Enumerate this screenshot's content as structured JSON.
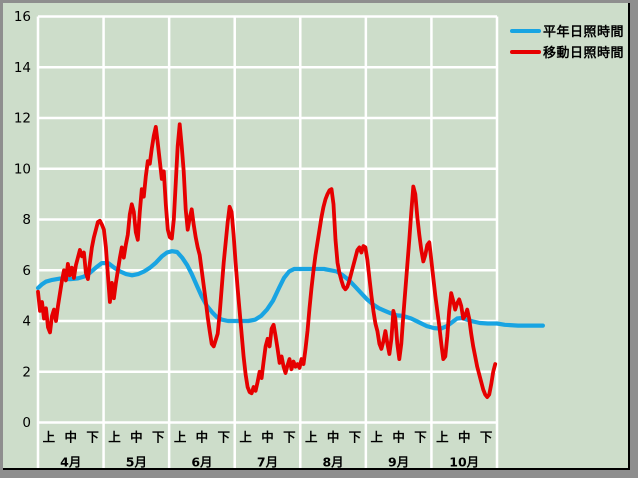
{
  "legend": {
    "items": [
      {
        "label": "平年日照時間",
        "color": "#18a4e2"
      },
      {
        "label": "移動日照時間",
        "color": "#e60000"
      }
    ]
  },
  "colors": {
    "plot_background": "#cdddca",
    "gridline": "#ffffff",
    "text": "#000000",
    "frame_gray": "#8e8e8e",
    "frame_black": "#000000",
    "frame_white": "#ffffff"
  },
  "chart_data": {
    "type": "line",
    "title": "",
    "xlabel": "",
    "ylabel": "",
    "grid": true,
    "legend_position": "top-right",
    "y_axis": {
      "min": 0,
      "max": 16,
      "tick_interval": 2,
      "tick_labels": [
        "0",
        "2",
        "4",
        "6",
        "8",
        "10",
        "12",
        "14",
        "16"
      ]
    },
    "x_axis": {
      "months": [
        "4月",
        "5月",
        "6月",
        "7月",
        "8月",
        "9月",
        "10月"
      ],
      "jun_labels": [
        "上",
        "中",
        "下"
      ],
      "note": "u = fraction of the April-October axis span; each month split into 上/中/下 ten-day periods"
    },
    "series": [
      {
        "name": "平年日照時間",
        "color": "#18a4e2",
        "points_uv": [
          [
            0.0,
            5.3
          ],
          [
            0.009,
            5.45
          ],
          [
            0.017,
            5.55
          ],
          [
            0.031,
            5.62
          ],
          [
            0.048,
            5.67
          ],
          [
            0.07,
            5.65
          ],
          [
            0.087,
            5.68
          ],
          [
            0.1,
            5.75
          ],
          [
            0.113,
            5.9
          ],
          [
            0.126,
            6.1
          ],
          [
            0.139,
            6.28
          ],
          [
            0.153,
            6.28
          ],
          [
            0.166,
            6.1
          ],
          [
            0.179,
            5.95
          ],
          [
            0.192,
            5.85
          ],
          [
            0.205,
            5.8
          ],
          [
            0.218,
            5.85
          ],
          [
            0.231,
            5.95
          ],
          [
            0.244,
            6.1
          ],
          [
            0.257,
            6.3
          ],
          [
            0.27,
            6.55
          ],
          [
            0.281,
            6.7
          ],
          [
            0.292,
            6.75
          ],
          [
            0.303,
            6.72
          ],
          [
            0.314,
            6.5
          ],
          [
            0.325,
            6.2
          ],
          [
            0.335,
            5.85
          ],
          [
            0.346,
            5.4
          ],
          [
            0.357,
            4.95
          ],
          [
            0.368,
            4.6
          ],
          [
            0.379,
            4.35
          ],
          [
            0.39,
            4.15
          ],
          [
            0.401,
            4.05
          ],
          [
            0.414,
            4.0
          ],
          [
            0.436,
            4.0
          ],
          [
            0.458,
            4.0
          ],
          [
            0.473,
            4.05
          ],
          [
            0.486,
            4.2
          ],
          [
            0.499,
            4.45
          ],
          [
            0.512,
            4.8
          ],
          [
            0.525,
            5.3
          ],
          [
            0.536,
            5.7
          ],
          [
            0.547,
            5.95
          ],
          [
            0.558,
            6.05
          ],
          [
            0.58,
            6.05
          ],
          [
            0.601,
            6.05
          ],
          [
            0.623,
            6.05
          ],
          [
            0.638,
            6.0
          ],
          [
            0.651,
            5.95
          ],
          [
            0.664,
            5.8
          ],
          [
            0.678,
            5.6
          ],
          [
            0.691,
            5.35
          ],
          [
            0.704,
            5.1
          ],
          [
            0.717,
            4.85
          ],
          [
            0.73,
            4.65
          ],
          [
            0.743,
            4.5
          ],
          [
            0.756,
            4.4
          ],
          [
            0.769,
            4.3
          ],
          [
            0.782,
            4.22
          ],
          [
            0.795,
            4.2
          ],
          [
            0.813,
            4.1
          ],
          [
            0.83,
            3.95
          ],
          [
            0.847,
            3.8
          ],
          [
            0.863,
            3.72
          ],
          [
            0.878,
            3.7
          ],
          [
            0.891,
            3.8
          ],
          [
            0.902,
            3.95
          ],
          [
            0.913,
            4.1
          ],
          [
            0.924,
            4.12
          ],
          [
            0.935,
            4.05
          ],
          [
            0.948,
            3.98
          ],
          [
            0.963,
            3.92
          ],
          [
            0.98,
            3.9
          ],
          [
            1.0,
            3.9
          ],
          [
            1.017,
            3.85
          ],
          [
            1.046,
            3.82
          ],
          [
            1.076,
            3.82
          ],
          [
            1.1,
            3.82
          ]
        ]
      },
      {
        "name": "移動日照時間",
        "color": "#e60000",
        "u_start": 0.0,
        "u_end": 0.996,
        "values": [
          5.15,
          4.4,
          4.75,
          4.1,
          4.5,
          3.75,
          3.55,
          4.2,
          4.45,
          4.0,
          4.6,
          5.1,
          5.6,
          6.0,
          5.6,
          6.25,
          5.8,
          6.1,
          5.7,
          6.2,
          6.5,
          6.8,
          6.55,
          6.7,
          5.9,
          5.65,
          6.3,
          6.9,
          7.3,
          7.6,
          7.9,
          7.95,
          7.8,
          7.6,
          6.9,
          5.8,
          4.75,
          5.5,
          4.9,
          5.5,
          6.0,
          6.5,
          6.9,
          6.5,
          7.0,
          7.4,
          8.2,
          8.6,
          8.3,
          7.5,
          7.2,
          8.3,
          9.2,
          8.9,
          9.7,
          10.3,
          10.2,
          10.8,
          11.3,
          11.65,
          11.0,
          10.3,
          9.6,
          9.9,
          8.6,
          7.6,
          7.3,
          7.25,
          8.0,
          9.4,
          10.9,
          11.75,
          10.9,
          9.9,
          8.4,
          7.6,
          8.05,
          8.4,
          7.8,
          7.3,
          6.9,
          6.6,
          6.0,
          5.4,
          4.8,
          4.15,
          3.6,
          3.1,
          3.0,
          3.25,
          3.5,
          4.3,
          5.3,
          6.3,
          7.1,
          7.9,
          8.5,
          8.3,
          7.4,
          6.3,
          5.3,
          4.4,
          3.5,
          2.6,
          1.9,
          1.4,
          1.2,
          1.15,
          1.4,
          1.25,
          1.6,
          2.0,
          1.75,
          2.4,
          3.0,
          3.3,
          3.0,
          3.7,
          3.85,
          3.4,
          2.9,
          2.35,
          2.6,
          2.2,
          1.95,
          2.25,
          2.5,
          2.1,
          2.4,
          2.2,
          2.3,
          2.15,
          2.5,
          2.3,
          2.9,
          3.6,
          4.5,
          5.3,
          6.0,
          6.6,
          7.1,
          7.6,
          8.1,
          8.5,
          8.8,
          9.0,
          9.15,
          9.2,
          8.6,
          7.2,
          6.3,
          5.9,
          5.6,
          5.35,
          5.25,
          5.35,
          5.6,
          5.9,
          6.2,
          6.5,
          6.8,
          6.9,
          6.7,
          6.95,
          6.9,
          6.4,
          5.7,
          5.0,
          4.4,
          3.9,
          3.6,
          3.1,
          2.9,
          3.2,
          3.6,
          3.1,
          2.7,
          3.3,
          4.4,
          4.1,
          3.1,
          2.5,
          3.1,
          4.2,
          5.2,
          6.2,
          7.2,
          8.3,
          9.3,
          9.0,
          8.1,
          7.4,
          6.8,
          6.35,
          6.6,
          7.0,
          7.1,
          6.4,
          5.7,
          5.0,
          4.4,
          3.8,
          3.1,
          2.5,
          2.6,
          3.4,
          4.4,
          5.1,
          4.8,
          4.45,
          4.7,
          4.85,
          4.6,
          4.1,
          4.2,
          4.45,
          4.1,
          3.5,
          3.0,
          2.6,
          2.2,
          1.9,
          1.6,
          1.3,
          1.1,
          1.0,
          1.1,
          1.5,
          2.0,
          2.3
        ]
      }
    ]
  }
}
